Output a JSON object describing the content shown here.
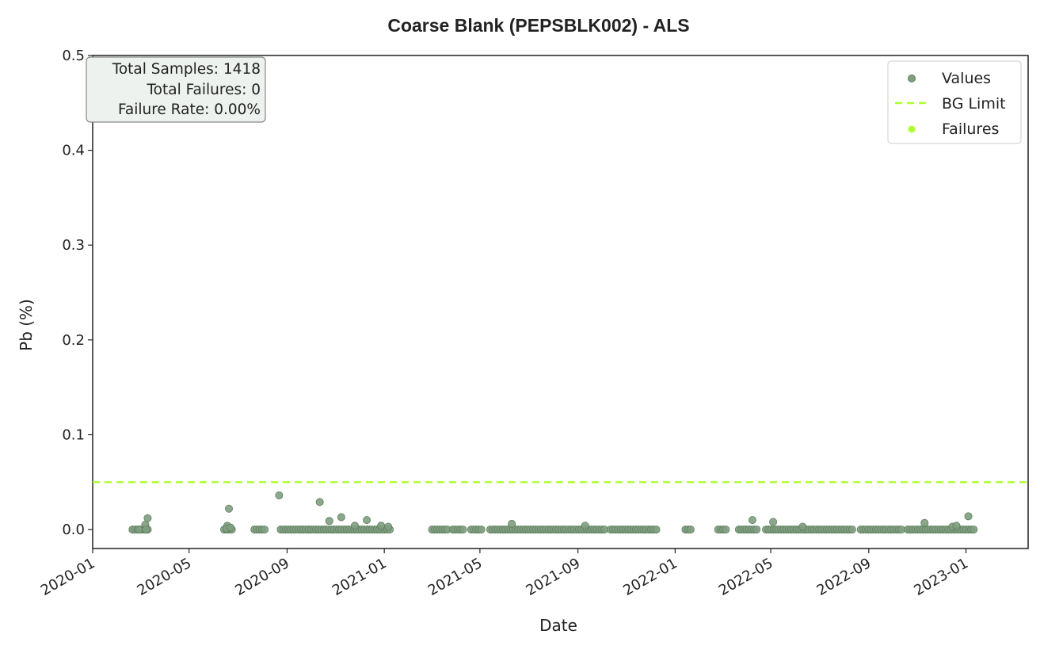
{
  "chart_data": {
    "type": "scatter",
    "title": "Coarse Blank (PEPSBLK002) - ALS",
    "xlabel": "Date",
    "ylabel": "Pb (%)",
    "x_axis_type": "date",
    "xlim": [
      "2020-01-01",
      "2023-03-20"
    ],
    "ylim": [
      -0.02,
      0.5
    ],
    "x_ticks": [
      "2020-01",
      "2020-05",
      "2020-09",
      "2021-01",
      "2021-05",
      "2021-09",
      "2022-01",
      "2022-05",
      "2022-09",
      "2023-01"
    ],
    "y_ticks": [
      0.0,
      0.1,
      0.2,
      0.3,
      0.4,
      0.5
    ],
    "y_tick_labels": [
      "0.0",
      "0.1",
      "0.2",
      "0.3",
      "0.4",
      "0.5"
    ],
    "grid": false,
    "legend_position": "top-right",
    "legend": [
      {
        "label": "Values",
        "kind": "marker",
        "color": "#7f9f7f"
      },
      {
        "label": "BG Limit",
        "kind": "dashed-line",
        "color": "#adff2f"
      },
      {
        "label": "Failures",
        "kind": "marker",
        "color": "#adff2f"
      }
    ],
    "bg_limit": 0.05,
    "stats_box": {
      "position": "top-left",
      "lines": [
        "Total Samples: 1418",
        "Total Failures: 0",
        "Failure Rate: 0.00%"
      ]
    },
    "colors": {
      "values": "#7f9f7f",
      "values_edge": "#5f7f5f",
      "limit": "#adff2f",
      "failures": "#adff2f"
    },
    "series": [
      {
        "name": "Values",
        "points": [
          [
            "2020-03-10",
            0.012
          ],
          [
            "2020-03-07",
            0.005
          ],
          [
            "2020-02-28",
            0.0
          ],
          [
            "2020-03-08",
            0.0
          ],
          [
            "2020-06-20",
            0.022
          ],
          [
            "2020-06-18",
            0.004
          ],
          [
            "2020-06-17",
            0.001
          ],
          [
            "2020-06-22",
            0.002
          ],
          [
            "2020-08-22",
            0.036
          ],
          [
            "2020-10-12",
            0.029
          ],
          [
            "2020-10-24",
            0.009
          ],
          [
            "2020-11-08",
            0.013
          ],
          [
            "2020-12-10",
            0.01
          ],
          [
            "2020-11-25",
            0.004
          ],
          [
            "2020-12-28",
            0.004
          ],
          [
            "2021-01-06",
            0.003
          ],
          [
            "2021-06-10",
            0.006
          ],
          [
            "2021-09-10",
            0.004
          ],
          [
            "2022-04-08",
            0.01
          ],
          [
            "2022-05-04",
            0.008
          ],
          [
            "2022-06-10",
            0.003
          ],
          [
            "2022-11-10",
            0.007
          ],
          [
            "2023-01-04",
            0.014
          ],
          [
            "2022-12-15",
            0.003
          ],
          [
            "2022-12-20",
            0.004
          ]
        ],
        "baseline_runs": [
          [
            "2020-02-20",
            "2020-03-12"
          ],
          [
            "2020-06-14",
            "2020-06-24"
          ],
          [
            "2020-07-22",
            "2020-08-06"
          ],
          [
            "2020-08-24",
            "2020-09-28"
          ],
          [
            "2020-09-28",
            "2021-01-10"
          ],
          [
            "2021-03-02",
            "2021-03-22"
          ],
          [
            "2021-03-28",
            "2021-04-10"
          ],
          [
            "2021-04-20",
            "2021-05-05"
          ],
          [
            "2021-05-14",
            "2021-10-05"
          ],
          [
            "2021-10-12",
            "2021-12-10"
          ],
          [
            "2022-01-14",
            "2022-01-22"
          ],
          [
            "2022-02-24",
            "2022-03-06"
          ],
          [
            "2022-03-22",
            "2022-04-16"
          ],
          [
            "2022-04-25",
            "2022-08-12"
          ],
          [
            "2022-08-22",
            "2022-10-12"
          ],
          [
            "2022-10-20",
            "2023-01-12"
          ]
        ],
        "baseline_value": 0.0,
        "failures": []
      }
    ]
  }
}
